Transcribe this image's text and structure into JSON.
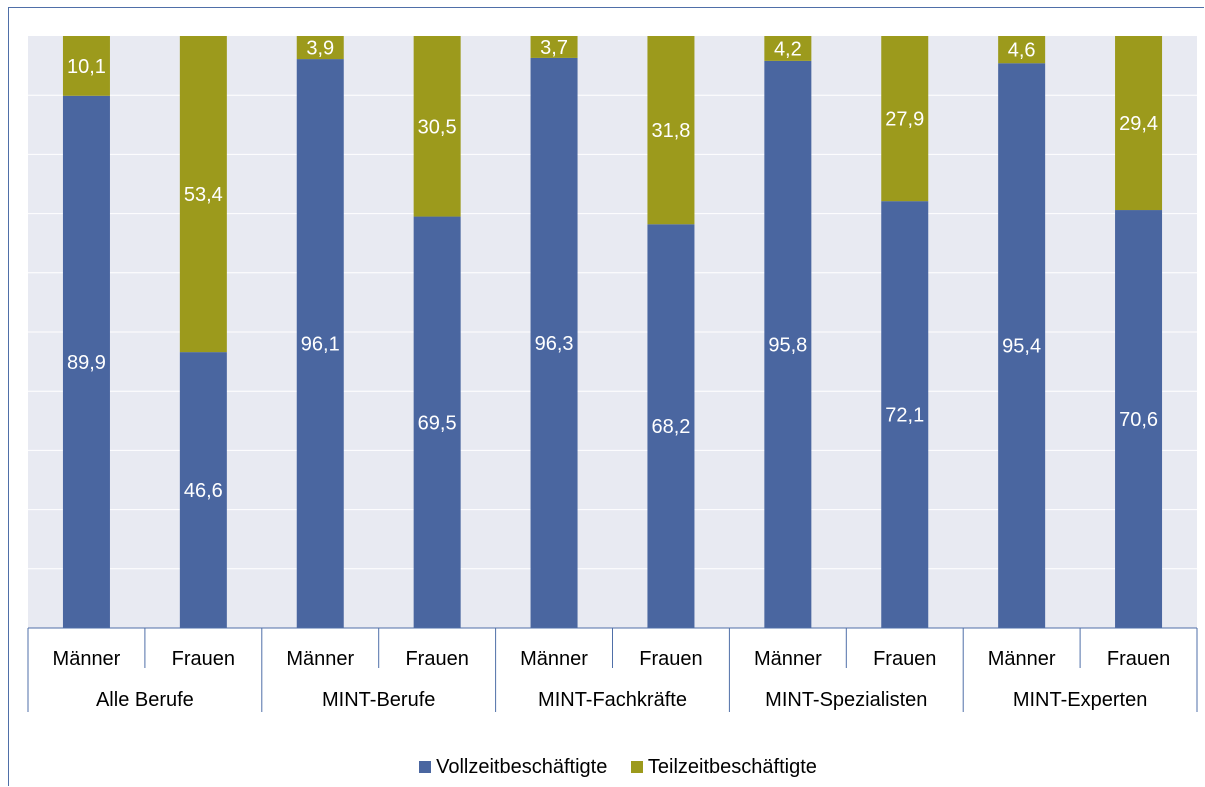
{
  "chart_data": {
    "type": "bar",
    "stacked": true,
    "percent_stacked": true,
    "title": "",
    "xlabel": "",
    "ylabel": "",
    "ylim": [
      0,
      100
    ],
    "grid": true,
    "y_axis_visible": false,
    "legend_position": "bottom",
    "groups": [
      {
        "label": "Alle Berufe",
        "categories": [
          "Männer",
          "Frauen"
        ]
      },
      {
        "label": "MINT-Berufe",
        "categories": [
          "Männer",
          "Frauen"
        ]
      },
      {
        "label": "MINT-Fachkräfte",
        "categories": [
          "Männer",
          "Frauen"
        ]
      },
      {
        "label": "MINT-Spezialisten",
        "categories": [
          "Männer",
          "Frauen"
        ]
      },
      {
        "label": "MINT-Experten",
        "categories": [
          "Männer",
          "Frauen"
        ]
      }
    ],
    "categories": [
      "Männer",
      "Frauen",
      "Männer",
      "Frauen",
      "Männer",
      "Frauen",
      "Männer",
      "Frauen",
      "Männer",
      "Frauen"
    ],
    "series": [
      {
        "name": "Vollzeitbeschäftigte",
        "color": "#4a66a0",
        "values": [
          89.9,
          46.6,
          96.1,
          69.5,
          96.3,
          68.2,
          95.8,
          72.1,
          95.4,
          70.6
        ],
        "labels": [
          "89,9",
          "46,6",
          "96,1",
          "69,5",
          "96,3",
          "68,2",
          "95,8",
          "72,1",
          "95,4",
          "70,6"
        ]
      },
      {
        "name": "Teilzeitbeschäftigte",
        "color": "#9c9a1c",
        "values": [
          10.1,
          53.4,
          3.9,
          30.5,
          3.7,
          31.8,
          4.2,
          27.9,
          4.6,
          29.4
        ],
        "labels": [
          "10,1",
          "53,4",
          "3,9",
          "30,5",
          "3,7",
          "31,8",
          "4,2",
          "27,9",
          "4,6",
          "29,4"
        ]
      }
    ]
  },
  "colors": {
    "plot_background": "#e8eaf2",
    "gridline": "#ffffff",
    "axis_line": "#4f6fa8",
    "label_text": "#ffffff",
    "category_text": "#000000"
  }
}
